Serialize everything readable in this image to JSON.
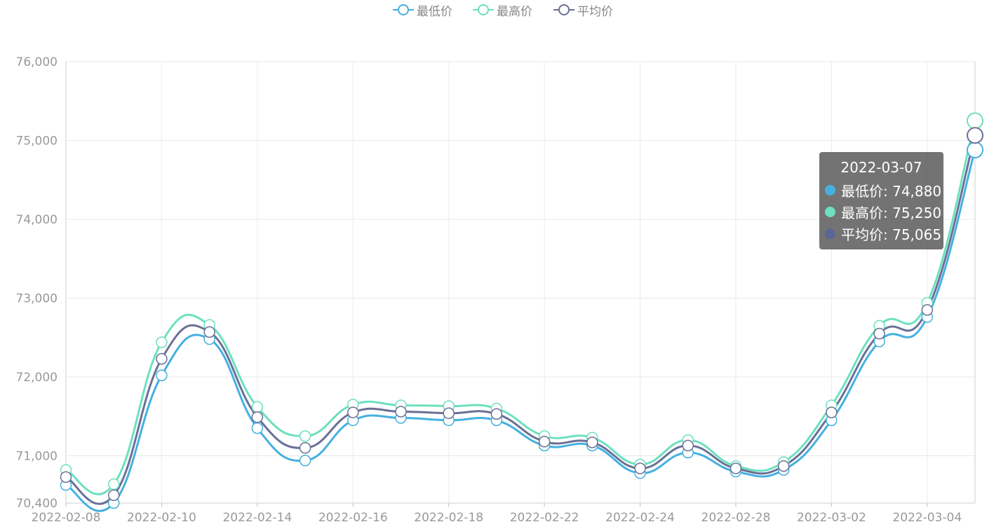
{
  "chart_data": {
    "type": "line",
    "x": [
      "2022-02-08",
      "2022-02-09",
      "2022-02-10",
      "2022-02-11",
      "2022-02-14",
      "2022-02-15",
      "2022-02-16",
      "2022-02-17",
      "2022-02-18",
      "2022-02-21",
      "2022-02-22",
      "2022-02-23",
      "2022-02-24",
      "2022-02-25",
      "2022-02-28",
      "2022-03-01",
      "2022-03-02",
      "2022-03-03",
      "2022-03-04",
      "2022-03-07"
    ],
    "x_tick_labels": [
      "2022-02-08",
      "2022-02-10",
      "2022-02-14",
      "2022-02-16",
      "2022-02-18",
      "2022-02-22",
      "2022-02-24",
      "2022-02-28",
      "2022-03-02",
      "2022-03-04"
    ],
    "x_tick_indices": [
      0,
      2,
      4,
      6,
      8,
      10,
      12,
      14,
      16,
      18
    ],
    "series": [
      {
        "name": "最低价",
        "color": "#45b0e0",
        "values": [
          70630,
          70400,
          72020,
          72480,
          71350,
          70940,
          71450,
          71480,
          71450,
          71450,
          71130,
          71130,
          70780,
          71040,
          70800,
          70820,
          71450,
          72450,
          72760,
          74880
        ]
      },
      {
        "name": "最高价",
        "color": "#6de0bf",
        "values": [
          70820,
          70640,
          72440,
          72660,
          71620,
          71250,
          71650,
          71640,
          71630,
          71600,
          71250,
          71230,
          70890,
          71200,
          70870,
          70920,
          71640,
          72650,
          72940,
          75250
        ]
      },
      {
        "name": "平均价",
        "color": "#6a7096",
        "values": [
          70730,
          70500,
          72230,
          72570,
          71490,
          71100,
          71550,
          71560,
          71540,
          71530,
          71180,
          71170,
          70840,
          71130,
          70840,
          70870,
          71550,
          72550,
          72850,
          75065
        ]
      }
    ],
    "y_ticks": [
      "70,400",
      "71,000",
      "72,000",
      "73,000",
      "74,000",
      "75,000",
      "76,000"
    ],
    "y_tick_values": [
      70400,
      71000,
      72000,
      73000,
      74000,
      75000,
      76000
    ],
    "ylim": [
      70400,
      76000
    ],
    "grid": true,
    "legend_position": "top-center",
    "tooltip": {
      "title": "2022-03-07",
      "index": 19,
      "rows": [
        {
          "label": "最低价: 74,880",
          "color": "#45b0e0"
        },
        {
          "label": "最高价: 75,250",
          "color": "#6de0bf"
        },
        {
          "label": "平均价: 75,065",
          "color": "#5b6596"
        }
      ]
    }
  },
  "legend": [
    {
      "label": "最低价",
      "color": "#45b0e0"
    },
    {
      "label": "最高价",
      "color": "#6de0bf"
    },
    {
      "label": "平均价",
      "color": "#6a7096"
    }
  ]
}
